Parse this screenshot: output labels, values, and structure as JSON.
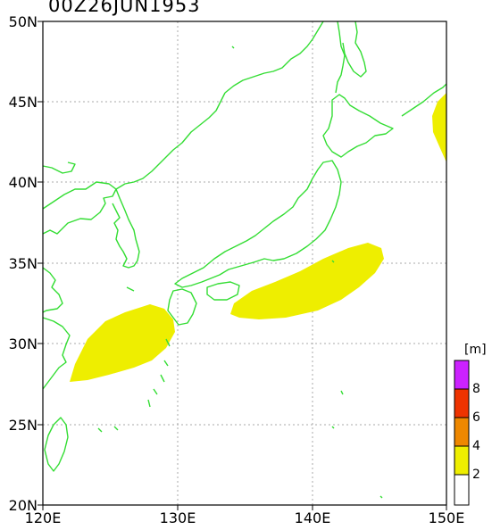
{
  "title": "00Z26JUN1953",
  "lat_labels": [
    "50N",
    "45N",
    "40N",
    "35N",
    "30N",
    "25N",
    "20N"
  ],
  "lon_labels": [
    "120E",
    "130E",
    "140E",
    "150E"
  ],
  "colorbar": {
    "unit": "[m]",
    "labels": [
      "8",
      "6",
      "4",
      "2"
    ],
    "colors": [
      "#cc22ff",
      "#ee3300",
      "#ee8800",
      "#eeee00",
      "#ffffff"
    ]
  },
  "colors": {
    "coastline": "#33dd33",
    "wave_fill": "#eeee00",
    "grid": "#aaaaaa"
  }
}
